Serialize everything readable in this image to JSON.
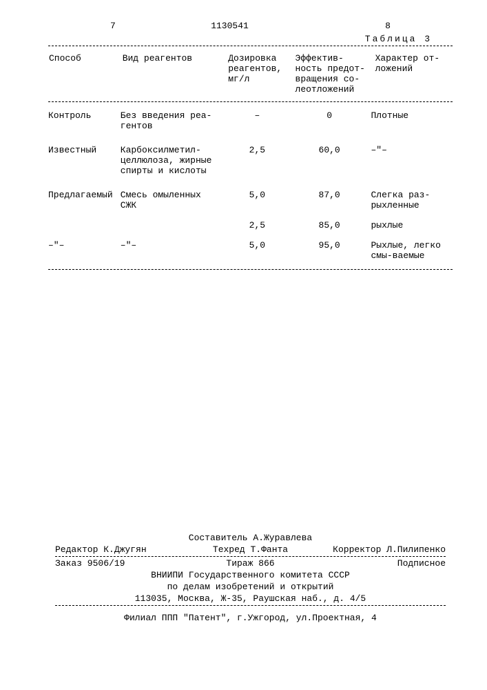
{
  "header": {
    "page_left": "7",
    "doc_number": "1130541",
    "page_right": "8",
    "table_label": "Таблица 3"
  },
  "table": {
    "columns": {
      "c1": "Способ",
      "c2": "Вид реагентов",
      "c3": "Дозировка реагентов, мг/л",
      "c4": "Эффектив-ность предот-вращения со-леотложений",
      "c5": "Характер от-ложений"
    },
    "rows": [
      {
        "c1": "Контроль",
        "c2": "Без введения реа-гентов",
        "c3": "–",
        "c4": "0",
        "c5": "Плотные"
      },
      {
        "c1": "Известный",
        "c2": "Карбоксилметил-целлюлоза, жирные спирты и кислоты",
        "c3": "2,5",
        "c4": "60,0",
        "c5": "–\"–"
      },
      {
        "c1": "Предлагаемый",
        "c2": "Смесь омыленных СЖК",
        "c3": "5,0",
        "c4": "87,0",
        "c5": "Слегка раз-рыхленные"
      },
      {
        "c1": "",
        "c2": "",
        "c3": "2,5",
        "c4": "85,0",
        "c5": "рыхлые"
      },
      {
        "c1": "–\"–",
        "c2": "–\"–",
        "c3": "5,0",
        "c4": "95,0",
        "c5": "Рыхлые, легко смы-ваемые"
      }
    ]
  },
  "footer": {
    "compiler": "Составитель А.Журавлева",
    "editor": "Редактор К.Джугян",
    "techred": "Техред Т.Фанта",
    "corrector": "Корректор Л.Пилипенко",
    "order": "Заказ 9506/19",
    "tirage": "Тираж 866",
    "subscription": "Подписное",
    "org1": "ВНИИПИ Государственного комитета СССР",
    "org2": "по делам изобретений и открытий",
    "address": "113035, Москва, Ж-35, Раушская наб., д. 4/5",
    "branch": "Филиал ППП \"Патент\", г.Ужгород, ул.Проектная, 4"
  }
}
